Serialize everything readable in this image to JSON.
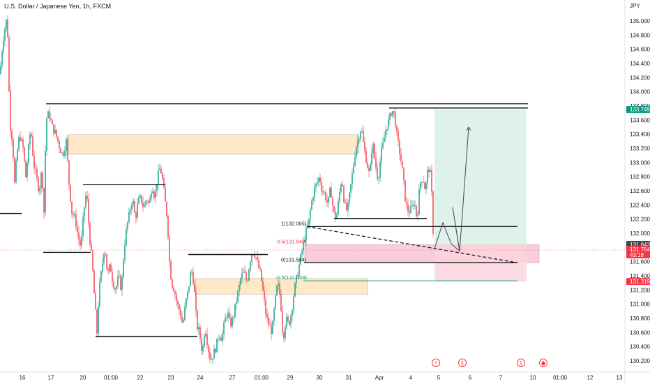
{
  "title": "U.S. Dollar / Japanese Yen, 1h, FXCM",
  "currency": "JPY",
  "chart_data": {
    "type": "candlestick",
    "symbol": "U.S. Dollar / Japanese Yen",
    "interval": "1h",
    "source": "FXCM",
    "yrange": [
      130.1,
      135.2
    ],
    "xrange": [
      0,
      888
    ],
    "y_ticks": [
      "135.000",
      "134.800",
      "134.600",
      "134.400",
      "134.200",
      "134.000",
      "133.800",
      "133.600",
      "133.400",
      "133.200",
      "133.000",
      "132.800",
      "132.600",
      "132.400",
      "132.200",
      "132.000",
      "131.800",
      "131.600",
      "131.400",
      "131.200",
      "131.000",
      "130.800",
      "130.600",
      "130.400",
      "130.200"
    ],
    "y_tick_values": [
      135.0,
      134.8,
      134.6,
      134.4,
      134.2,
      134.0,
      133.8,
      133.6,
      133.4,
      133.2,
      133.0,
      132.8,
      132.6,
      132.4,
      132.2,
      132.0,
      131.8,
      131.6,
      131.4,
      131.2,
      131.0,
      130.8,
      130.6,
      130.4,
      130.2
    ],
    "x_ticks": [
      {
        "label": "16",
        "x": 32
      },
      {
        "label": "17",
        "x": 73
      },
      {
        "label": "20",
        "x": 119
      },
      {
        "label": "01:00",
        "x": 159
      },
      {
        "label": "22",
        "x": 201
      },
      {
        "label": "23",
        "x": 245
      },
      {
        "label": "24",
        "x": 287
      },
      {
        "label": "27",
        "x": 333
      },
      {
        "label": "01:00",
        "x": 375
      },
      {
        "label": "29",
        "x": 416
      },
      {
        "label": "30",
        "x": 458
      },
      {
        "label": "31",
        "x": 500
      },
      {
        "label": "Apr",
        "x": 544
      },
      {
        "label": "4",
        "x": 589
      },
      {
        "label": "5",
        "x": 629
      },
      {
        "label": "6",
        "x": 674
      },
      {
        "label": "7",
        "x": 718
      },
      {
        "label": "10",
        "x": 764
      },
      {
        "label": "01:00",
        "x": 803
      },
      {
        "label": "12",
        "x": 846
      },
      {
        "label": "13",
        "x": 888
      }
    ],
    "price_path": [
      [
        0,
        134.25
      ],
      [
        3,
        134.6
      ],
      [
        6,
        134.85
      ],
      [
        9,
        135.0
      ],
      [
        11,
        134.8
      ],
      [
        13,
        134.0
      ],
      [
        15,
        133.5
      ],
      [
        18,
        133.3
      ],
      [
        21,
        132.7
      ],
      [
        24,
        133.1
      ],
      [
        28,
        133.4
      ],
      [
        33,
        133.2
      ],
      [
        37,
        132.8
      ],
      [
        40,
        133.1
      ],
      [
        44,
        133.5
      ],
      [
        48,
        133.0
      ],
      [
        52,
        132.8
      ],
      [
        56,
        132.6
      ],
      [
        60,
        132.9
      ],
      [
        63,
        132.3
      ],
      [
        66,
        133.6
      ],
      [
        70,
        133.7
      ],
      [
        75,
        133.5
      ],
      [
        80,
        133.4
      ],
      [
        86,
        133.2
      ],
      [
        90,
        133.1
      ],
      [
        95,
        133.3
      ],
      [
        99,
        132.7
      ],
      [
        103,
        132.3
      ],
      [
        108,
        132.2
      ],
      [
        112,
        131.95
      ],
      [
        116,
        131.8
      ],
      [
        120,
        132.3
      ],
      [
        124,
        132.6
      ],
      [
        128,
        132.0
      ],
      [
        132,
        131.6
      ],
      [
        136,
        131.0
      ],
      [
        139,
        130.6
      ],
      [
        142,
        131.2
      ],
      [
        146,
        131.5
      ],
      [
        150,
        131.85
      ],
      [
        154,
        131.4
      ],
      [
        158,
        131.55
      ],
      [
        162,
        131.3
      ],
      [
        166,
        131.2
      ],
      [
        170,
        131.4
      ],
      [
        174,
        131.2
      ],
      [
        178,
        131.8
      ],
      [
        182,
        132.1
      ],
      [
        186,
        132.3
      ],
      [
        190,
        132.5
      ],
      [
        194,
        132.2
      ],
      [
        198,
        132.45
      ],
      [
        202,
        132.5
      ],
      [
        206,
        132.35
      ],
      [
        210,
        132.5
      ],
      [
        214,
        132.4
      ],
      [
        218,
        132.7
      ],
      [
        222,
        132.5
      ],
      [
        226,
        132.8
      ],
      [
        229,
        132.9
      ],
      [
        232,
        132.85
      ],
      [
        236,
        132.5
      ],
      [
        240,
        132.2
      ],
      [
        243,
        131.6
      ],
      [
        246,
        131.3
      ],
      [
        250,
        131.2
      ],
      [
        254,
        131.0
      ],
      [
        258,
        130.9
      ],
      [
        262,
        130.7
      ],
      [
        266,
        131.0
      ],
      [
        270,
        131.2
      ],
      [
        274,
        131.5
      ],
      [
        278,
        131.3
      ],
      [
        282,
        130.7
      ],
      [
        286,
        130.6
      ],
      [
        290,
        130.3
      ],
      [
        294,
        130.7
      ],
      [
        298,
        130.4
      ],
      [
        302,
        130.2
      ],
      [
        306,
        130.3
      ],
      [
        310,
        130.4
      ],
      [
        314,
        130.6
      ],
      [
        318,
        130.5
      ],
      [
        322,
        130.75
      ],
      [
        326,
        130.9
      ],
      [
        330,
        130.7
      ],
      [
        334,
        130.8
      ],
      [
        338,
        131.0
      ],
      [
        342,
        131.2
      ],
      [
        346,
        131.4
      ],
      [
        350,
        131.45
      ],
      [
        354,
        131.3
      ],
      [
        358,
        131.6
      ],
      [
        362,
        131.75
      ],
      [
        366,
        131.7
      ],
      [
        370,
        131.55
      ],
      [
        374,
        131.4
      ],
      [
        378,
        131.1
      ],
      [
        382,
        130.8
      ],
      [
        386,
        130.7
      ],
      [
        390,
        130.6
      ],
      [
        394,
        131.0
      ],
      [
        398,
        131.3
      ],
      [
        402,
        131.1
      ],
      [
        406,
        130.5
      ],
      [
        410,
        130.8
      ],
      [
        414,
        130.7
      ],
      [
        418,
        130.9
      ],
      [
        422,
        131.2
      ],
      [
        426,
        131.4
      ],
      [
        430,
        131.6
      ],
      [
        434,
        131.8
      ],
      [
        438,
        132.0
      ],
      [
        442,
        132.1
      ],
      [
        446,
        132.4
      ],
      [
        450,
        132.6
      ],
      [
        454,
        132.7
      ],
      [
        458,
        132.8
      ],
      [
        462,
        132.6
      ],
      [
        466,
        132.55
      ],
      [
        470,
        132.4
      ],
      [
        474,
        132.65
      ],
      [
        478,
        132.3
      ],
      [
        482,
        132.2
      ],
      [
        486,
        132.5
      ],
      [
        490,
        132.8
      ],
      [
        494,
        132.4
      ],
      [
        498,
        132.3
      ],
      [
        502,
        132.6
      ],
      [
        506,
        132.9
      ],
      [
        510,
        133.2
      ],
      [
        514,
        133.35
      ],
      [
        518,
        133.5
      ],
      [
        522,
        133.2
      ],
      [
        526,
        133.0
      ],
      [
        530,
        132.8
      ],
      [
        534,
        133.3
      ],
      [
        538,
        133.0
      ],
      [
        542,
        132.75
      ],
      [
        546,
        133.1
      ],
      [
        550,
        133.3
      ],
      [
        554,
        133.5
      ],
      [
        558,
        133.6
      ],
      [
        562,
        133.75
      ],
      [
        566,
        133.65
      ],
      [
        570,
        133.3
      ],
      [
        574,
        133.1
      ],
      [
        578,
        132.8
      ],
      [
        582,
        132.4
      ],
      [
        586,
        132.3
      ],
      [
        590,
        132.35
      ],
      [
        594,
        132.45
      ],
      [
        598,
        132.2
      ],
      [
        602,
        132.7
      ],
      [
        606,
        132.8
      ],
      [
        610,
        132.6
      ],
      [
        614,
        132.95
      ],
      [
        618,
        132.8
      ],
      [
        622,
        131.78
      ]
    ],
    "annotations": {
      "horizontal_lines": [
        {
          "x1": 66,
          "x2": 757,
          "y": 133.83
        },
        {
          "x1": 558,
          "x2": 757,
          "y": 133.77
        },
        {
          "x1": 119,
          "x2": 237,
          "y": 132.69
        },
        {
          "x1": 0,
          "x2": 31,
          "y": 132.28
        },
        {
          "x1": 62,
          "x2": 130,
          "y": 131.73
        },
        {
          "x1": 137,
          "x2": 283,
          "y": 130.54
        },
        {
          "x1": 270,
          "x2": 384,
          "y": 131.7
        },
        {
          "x1": 479,
          "x2": 612,
          "y": 132.21
        },
        {
          "x1": 440,
          "x2": 742,
          "y": 132.095
        },
        {
          "x1": 436,
          "x2": 742,
          "y": 131.584
        }
      ],
      "supply_demand_zones": [
        {
          "x1": 98,
          "x2": 514,
          "ytop": 133.39,
          "ybottom": 133.12,
          "color": "#ffe0b2"
        },
        {
          "x1": 280,
          "x2": 527,
          "ytop": 131.36,
          "ybottom": 131.14,
          "color": "#ffe0b2"
        },
        {
          "x1": 437,
          "x2": 773,
          "ytop": 131.84,
          "ybottom": 131.584,
          "color": "#f8bbd0"
        }
      ],
      "position_tool": {
        "x1": 623,
        "x2": 755,
        "entry": 131.843,
        "target": 133.749,
        "stop": 131.319,
        "profit_color": "#d9efe8",
        "loss_color": "#fbd4dc"
      },
      "fibonacci": [
        {
          "label": "1(132.095)",
          "y": 132.095,
          "x": 403,
          "color": "#131722"
        },
        {
          "label": "0.5(131.840)",
          "y": 131.84,
          "x": 397,
          "color": "#f23645"
        },
        {
          "label": "0(131.584)",
          "y": 131.584,
          "x": 403,
          "color": "#131722"
        },
        {
          "label": "-0.5(131.329)",
          "y": 131.329,
          "x": 395,
          "color": "#089981"
        }
      ],
      "fib_lower_line": {
        "x1": 435,
        "x2": 742,
        "y": 131.329,
        "color": "#089981"
      },
      "dashed_trendline": [
        [
          440,
          132.095
        ],
        [
          742,
          131.584
        ]
      ],
      "projection_path": [
        [
          623,
          131.78
        ],
        [
          635,
          132.15
        ],
        [
          647,
          131.85
        ],
        [
          659,
          131.75
        ],
        [
          649,
          132.37
        ],
        [
          659,
          131.74
        ],
        [
          672,
          133.5
        ]
      ],
      "current_price_line": 131.764
    },
    "price_badges": [
      {
        "label": "133.749",
        "value": 133.749,
        "color": "#089981"
      },
      {
        "label": "131.843",
        "value": 131.843,
        "color": "#434651"
      },
      {
        "label": "131.764",
        "value": 131.764,
        "color": "#f23645",
        "sub": "43:18"
      },
      {
        "label": "131.319",
        "value": 131.319,
        "color": "#f23645"
      }
    ],
    "event_icons": [
      {
        "x": 625,
        "glyph": "⚡",
        "color": "#f23645"
      },
      {
        "x": 663,
        "glyph": "$",
        "color": "#f23645"
      },
      {
        "x": 747,
        "glyph": "$",
        "color": "#f23645"
      },
      {
        "x": 779,
        "glyph": "●",
        "color": "#f23645"
      }
    ]
  }
}
